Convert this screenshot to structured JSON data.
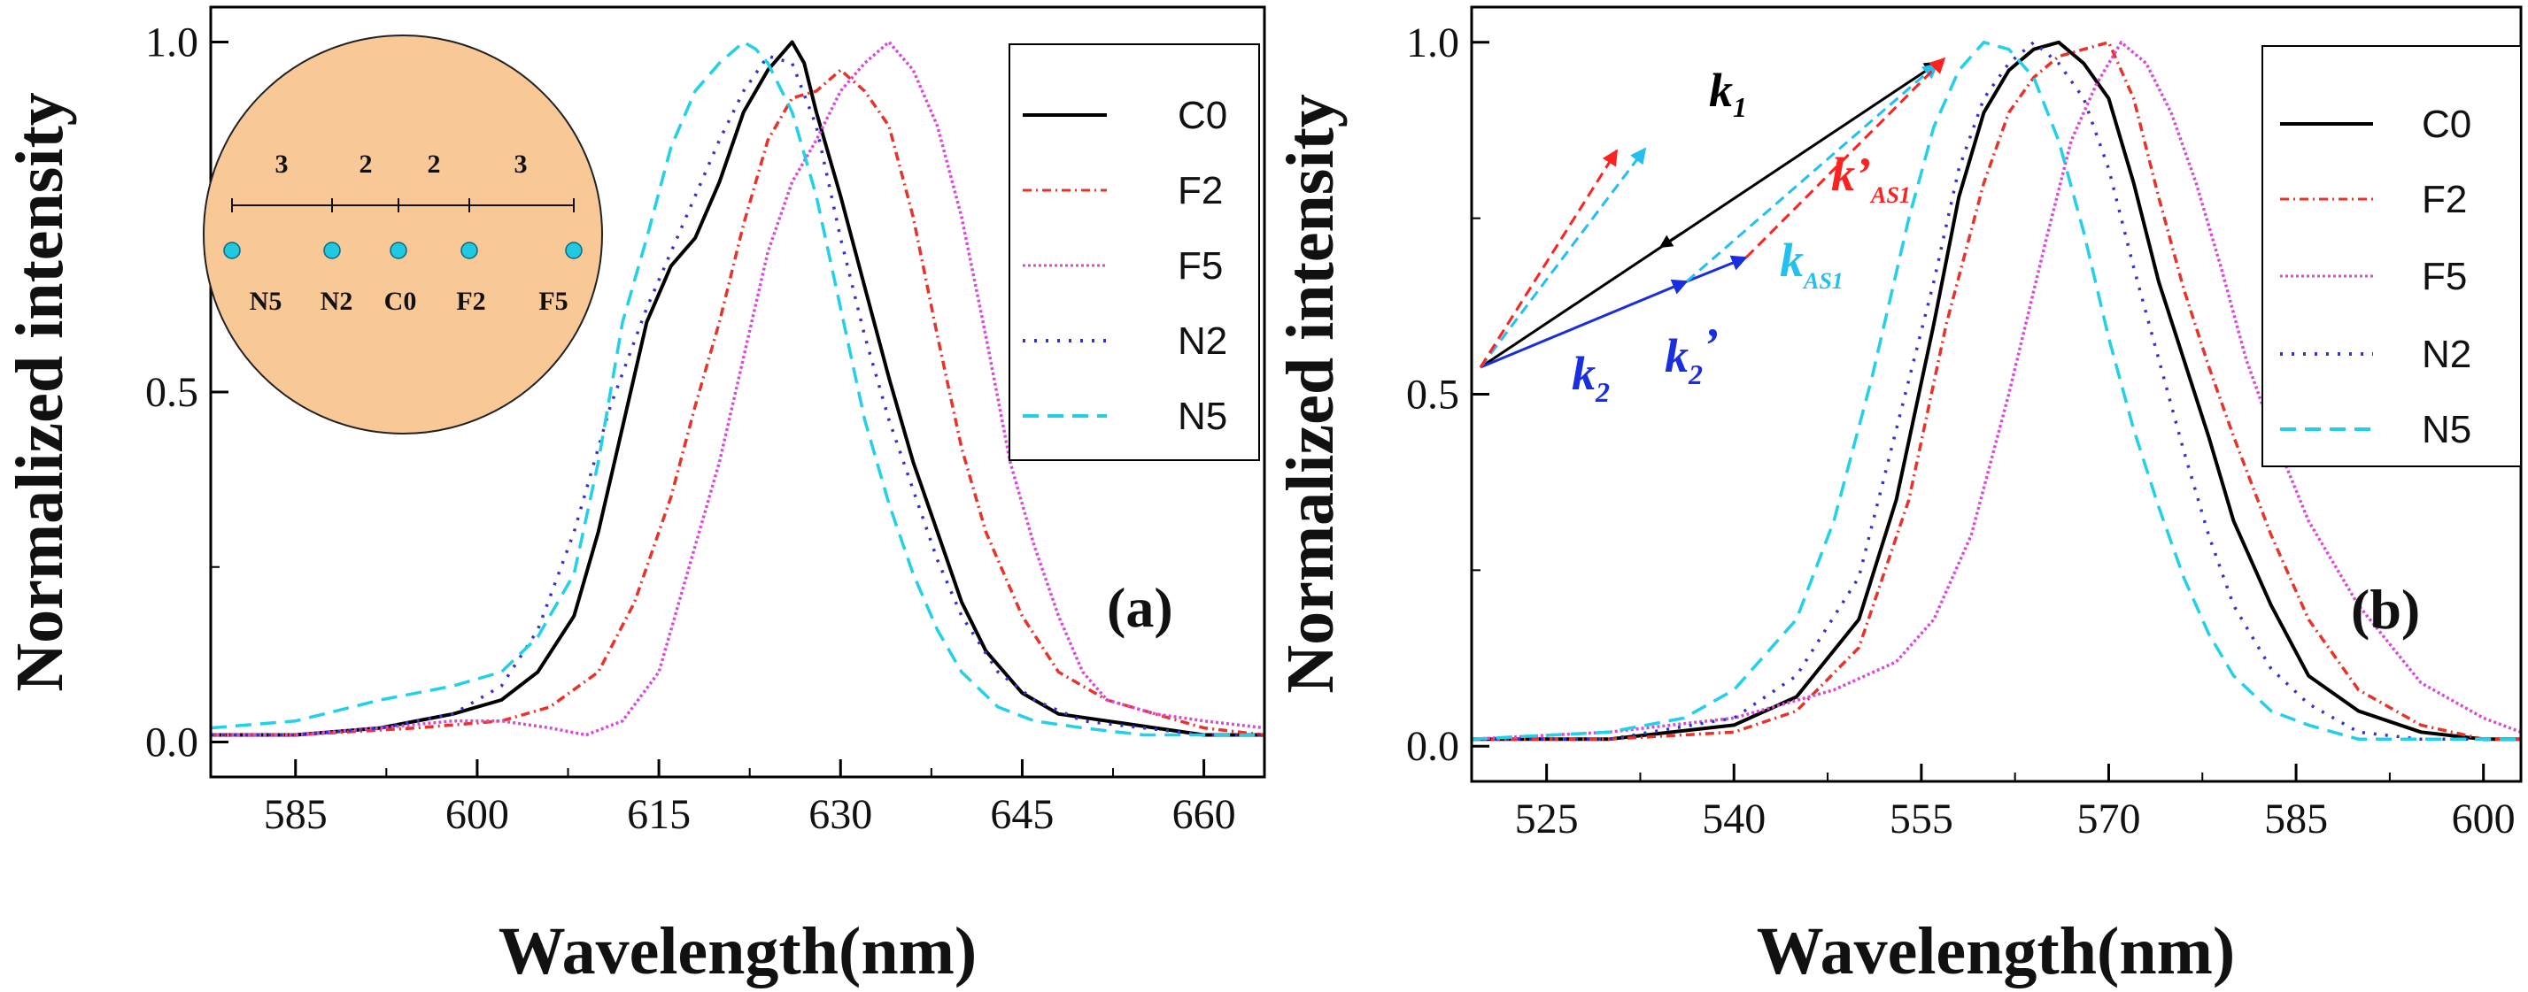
{
  "chart_data": [
    {
      "panel": "(a)",
      "type": "line",
      "xlabel": "Wavelength(nm)",
      "ylabel": "Normalized intensity",
      "xlim": [
        578,
        665
      ],
      "ylim": [
        -0.05,
        1.05
      ],
      "xticks": [
        585,
        600,
        615,
        630,
        645,
        660
      ],
      "yticks": [
        0.0,
        0.5,
        1.0
      ],
      "ytick_labels": [
        "0.0",
        "0.5",
        "1.0"
      ],
      "legend": [
        "C0",
        "F2",
        "F5",
        "N2",
        "N5"
      ],
      "series": [
        {
          "name": "C0",
          "color": "#000000",
          "dash": "",
          "x": [
            578,
            585,
            592,
            598,
            602,
            605,
            608,
            610,
            612,
            614,
            616,
            618,
            620,
            622,
            624,
            626,
            627,
            628,
            630,
            632,
            634,
            636,
            638,
            640,
            642,
            645,
            648,
            652,
            656,
            660,
            665
          ],
          "y": [
            0.01,
            0.01,
            0.02,
            0.04,
            0.06,
            0.1,
            0.18,
            0.3,
            0.45,
            0.6,
            0.68,
            0.72,
            0.8,
            0.9,
            0.96,
            1.0,
            0.97,
            0.9,
            0.78,
            0.65,
            0.52,
            0.4,
            0.3,
            0.2,
            0.13,
            0.07,
            0.04,
            0.03,
            0.02,
            0.01,
            0.01
          ]
        },
        {
          "name": "F2",
          "color": "#e8332a",
          "dash": "10,5,2,5",
          "x": [
            578,
            585,
            595,
            602,
            606,
            610,
            613,
            616,
            618,
            620,
            622,
            624,
            626,
            628,
            630,
            632,
            634,
            636,
            638,
            640,
            642,
            645,
            648,
            652,
            656,
            660,
            665
          ],
          "y": [
            0.01,
            0.01,
            0.02,
            0.03,
            0.05,
            0.1,
            0.2,
            0.35,
            0.48,
            0.6,
            0.74,
            0.86,
            0.92,
            0.93,
            0.96,
            0.93,
            0.88,
            0.75,
            0.58,
            0.42,
            0.3,
            0.18,
            0.1,
            0.06,
            0.04,
            0.02,
            0.01
          ]
        },
        {
          "name": "F5",
          "color": "#d94ad9",
          "dash": "3,3",
          "x": [
            578,
            585,
            592,
            598,
            602,
            606,
            609,
            612,
            615,
            618,
            620,
            622,
            624,
            626,
            628,
            630,
            632,
            634,
            636,
            638,
            640,
            642,
            644,
            646,
            648,
            650,
            652,
            656,
            660,
            665
          ],
          "y": [
            0.01,
            0.01,
            0.02,
            0.03,
            0.03,
            0.02,
            0.01,
            0.03,
            0.1,
            0.28,
            0.4,
            0.55,
            0.7,
            0.8,
            0.86,
            0.93,
            0.97,
            1.0,
            0.96,
            0.88,
            0.75,
            0.58,
            0.4,
            0.28,
            0.18,
            0.1,
            0.06,
            0.04,
            0.03,
            0.02
          ]
        },
        {
          "name": "N2",
          "color": "#3333cc",
          "dash": "3,10",
          "x": [
            578,
            585,
            592,
            598,
            602,
            605,
            608,
            611,
            614,
            616,
            618,
            620,
            622,
            624,
            626,
            628,
            630,
            632,
            634,
            636,
            638,
            640,
            643,
            646,
            650,
            655,
            660,
            665
          ],
          "y": [
            0.01,
            0.01,
            0.02,
            0.04,
            0.08,
            0.16,
            0.3,
            0.48,
            0.62,
            0.7,
            0.78,
            0.86,
            0.93,
            0.98,
            0.97,
            0.88,
            0.72,
            0.58,
            0.46,
            0.36,
            0.26,
            0.18,
            0.1,
            0.06,
            0.03,
            0.02,
            0.01,
            0.01
          ]
        },
        {
          "name": "N5",
          "color": "#22d0e8",
          "dash": "18,10",
          "x": [
            578,
            585,
            592,
            598,
            602,
            605,
            608,
            610,
            612,
            614,
            616,
            618,
            620,
            622,
            623,
            624,
            626,
            628,
            630,
            632,
            634,
            636,
            638,
            640,
            643,
            646,
            650,
            655,
            660,
            665
          ],
          "y": [
            0.02,
            0.03,
            0.06,
            0.08,
            0.1,
            0.15,
            0.24,
            0.4,
            0.6,
            0.72,
            0.85,
            0.93,
            0.97,
            1.0,
            0.99,
            0.97,
            0.9,
            0.78,
            0.62,
            0.46,
            0.34,
            0.24,
            0.16,
            0.1,
            0.05,
            0.03,
            0.02,
            0.01,
            0.01,
            0.01
          ]
        }
      ]
    },
    {
      "panel": "(b)",
      "type": "line",
      "xlabel": "Wavelength(nm)",
      "ylabel": "Normalized intensity",
      "xlim": [
        519,
        603
      ],
      "ylim": [
        -0.05,
        1.05
      ],
      "xticks": [
        525,
        540,
        555,
        570,
        585,
        600
      ],
      "yticks": [
        0.0,
        0.5,
        1.0
      ],
      "ytick_labels": [
        "0.0",
        "0.5",
        "1.0"
      ],
      "legend": [
        "C0",
        "F2",
        "F5",
        "N2",
        "N5"
      ],
      "series": [
        {
          "name": "C0",
          "color": "#000000",
          "dash": "",
          "x": [
            519,
            530,
            540,
            545,
            550,
            553,
            556,
            558,
            560,
            562,
            564,
            566,
            568,
            570,
            572,
            574,
            576,
            578,
            580,
            583,
            586,
            590,
            595,
            600,
            603
          ],
          "y": [
            0.01,
            0.01,
            0.03,
            0.07,
            0.18,
            0.35,
            0.6,
            0.78,
            0.9,
            0.96,
            0.99,
            1.0,
            0.97,
            0.92,
            0.8,
            0.66,
            0.55,
            0.44,
            0.32,
            0.2,
            0.1,
            0.05,
            0.02,
            0.01,
            0.01
          ]
        },
        {
          "name": "F2",
          "color": "#e8332a",
          "dash": "10,5,2,5",
          "x": [
            519,
            530,
            540,
            545,
            550,
            554,
            557,
            560,
            562,
            564,
            566,
            568,
            570,
            572,
            574,
            576,
            578,
            580,
            583,
            586,
            590,
            595,
            600,
            603
          ],
          "y": [
            0.01,
            0.01,
            0.02,
            0.05,
            0.14,
            0.35,
            0.6,
            0.8,
            0.9,
            0.95,
            0.98,
            0.99,
            1.0,
            0.92,
            0.78,
            0.65,
            0.54,
            0.44,
            0.3,
            0.18,
            0.08,
            0.03,
            0.01,
            0.01
          ]
        },
        {
          "name": "F5",
          "color": "#d94ad9",
          "dash": "3,3",
          "x": [
            519,
            530,
            540,
            548,
            553,
            556,
            559,
            562,
            565,
            567,
            569,
            571,
            573,
            575,
            577,
            579,
            581,
            583,
            586,
            590,
            595,
            600,
            603
          ],
          "y": [
            0.01,
            0.02,
            0.04,
            0.08,
            0.12,
            0.18,
            0.3,
            0.5,
            0.72,
            0.86,
            0.94,
            1.0,
            0.97,
            0.9,
            0.8,
            0.68,
            0.55,
            0.45,
            0.32,
            0.2,
            0.09,
            0.04,
            0.02
          ]
        },
        {
          "name": "N2",
          "color": "#3333cc",
          "dash": "3,10",
          "x": [
            519,
            530,
            540,
            545,
            550,
            553,
            556,
            558,
            560,
            562,
            564,
            566,
            568,
            570,
            572,
            574,
            576,
            578,
            580,
            583,
            586,
            590,
            595,
            600,
            603
          ],
          "y": [
            0.01,
            0.01,
            0.04,
            0.1,
            0.24,
            0.45,
            0.66,
            0.82,
            0.92,
            0.97,
            1.0,
            0.97,
            0.92,
            0.82,
            0.68,
            0.55,
            0.42,
            0.3,
            0.2,
            0.11,
            0.06,
            0.02,
            0.01,
            0.01,
            0.01
          ]
        },
        {
          "name": "N5",
          "color": "#22d0e8",
          "dash": "18,10",
          "x": [
            519,
            530,
            536,
            540,
            545,
            548,
            551,
            554,
            556,
            558,
            560,
            562,
            564,
            566,
            568,
            570,
            572,
            574,
            576,
            578,
            580,
            583,
            586,
            590,
            595,
            600,
            603
          ],
          "y": [
            0.01,
            0.02,
            0.04,
            0.08,
            0.18,
            0.32,
            0.52,
            0.75,
            0.88,
            0.96,
            1.0,
            0.99,
            0.95,
            0.86,
            0.73,
            0.58,
            0.45,
            0.34,
            0.24,
            0.16,
            0.1,
            0.05,
            0.03,
            0.01,
            0.01,
            0.01,
            0.01
          ]
        }
      ]
    }
  ],
  "inset_a": {
    "distances": [
      "3",
      "2",
      "2",
      "3"
    ],
    "points": [
      "N5",
      "N2",
      "C0",
      "F2",
      "F5"
    ],
    "disk_color": "#f8c896",
    "point_color": "#22c8e0"
  },
  "inset_b": {
    "labels": {
      "k1": "k",
      "k1_sub": "1",
      "kas1p": "k’",
      "kas1p_sub": "AS1",
      "kas1": "k",
      "kas1_sub": "AS1",
      "k2": "k",
      "k2_sub": "2",
      "k2p": "k",
      "k2p_sub": "2",
      "k2p_prime": "’"
    },
    "colors": {
      "k1": "#000000",
      "k2": "#1a2ee0",
      "kas1": "#22c0f0",
      "kas1p": "#ff2020"
    }
  }
}
